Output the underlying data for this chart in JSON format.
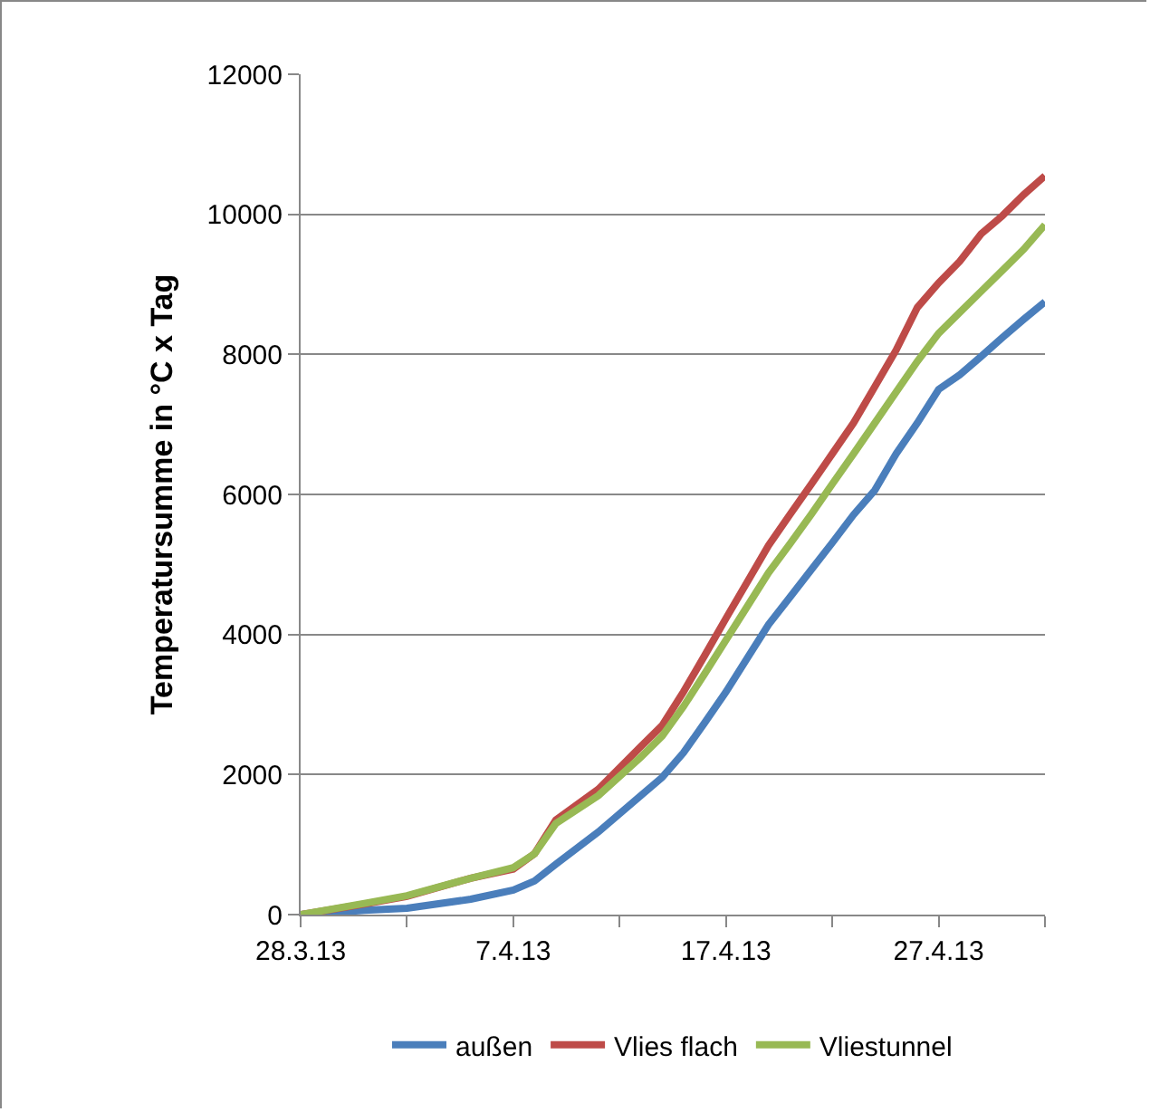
{
  "chart_data": {
    "type": "line",
    "ylabel": "Temperatursumme in °C x Tag",
    "x": [
      "--03-28",
      "--03-31",
      "--04-02",
      "--04-05",
      "--04-07",
      "--04-08",
      "--04-09",
      "--04-11",
      "--04-13",
      "--04-14",
      "--04-15",
      "--04-16",
      "--04-17",
      "--04-18",
      "--04-19",
      "--04-20",
      "--04-21",
      "--04-22",
      "--04-23",
      "--04-24",
      "--04-25",
      "--04-26",
      "--04-27",
      "--04-28",
      "--04-29",
      "--04-30",
      "--05-01",
      "--05-02"
    ],
    "series": [
      {
        "name": "außen",
        "color": "#4a7ebb",
        "values": [
          0,
          60,
          90,
          220,
          350,
          480,
          720,
          1180,
          1700,
          1960,
          2310,
          2740,
          3180,
          3660,
          4140,
          4530,
          4920,
          5310,
          5710,
          6060,
          6580,
          7020,
          7500,
          7710,
          7970,
          8240,
          8500,
          8750
        ]
      },
      {
        "name": "Vlies flach",
        "color": "#be4b48",
        "values": [
          0,
          150,
          260,
          520,
          650,
          870,
          1350,
          1790,
          2400,
          2700,
          3180,
          3700,
          4230,
          4750,
          5270,
          5710,
          6140,
          6580,
          7020,
          7540,
          8060,
          8670,
          9020,
          9330,
          9720,
          9980,
          10280,
          10550
        ]
      },
      {
        "name": "Vliestunnel",
        "color": "#98b954",
        "values": [
          0,
          160,
          270,
          520,
          670,
          870,
          1300,
          1700,
          2250,
          2550,
          2970,
          3440,
          3920,
          4400,
          4880,
          5290,
          5710,
          6150,
          6580,
          7020,
          7460,
          7900,
          8300,
          8600,
          8900,
          9200,
          9500,
          9850
        ]
      }
    ],
    "xlim": [
      "--03-28",
      "--05-02"
    ],
    "xticks": [
      {
        "value": "--03-28",
        "label": "28.3.13"
      },
      {
        "value": "--04-02",
        "label": null
      },
      {
        "value": "--04-07",
        "label": "7.4.13"
      },
      {
        "value": "--04-12",
        "label": null
      },
      {
        "value": "--04-17",
        "label": "17.4.13"
      },
      {
        "value": "--04-22",
        "label": null
      },
      {
        "value": "--04-27",
        "label": "27.4.13"
      },
      {
        "value": "--05-02",
        "label": null
      }
    ],
    "ylim": [
      0,
      12000
    ],
    "yticks": [
      0,
      2000,
      4000,
      6000,
      8000,
      10000,
      12000
    ],
    "grid": "y",
    "legend": "bottom",
    "marker": "none",
    "line_style": "solid"
  }
}
